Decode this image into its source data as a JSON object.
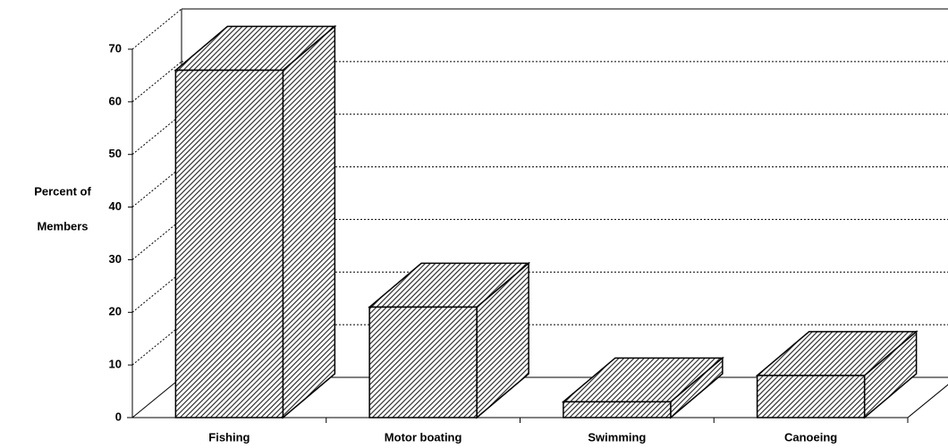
{
  "chart_data": {
    "type": "bar3d",
    "y_label": [
      "Percent of",
      "Members"
    ],
    "categories": [
      "Fishing",
      "Motor boating",
      "Swimming",
      "Canoeing"
    ],
    "values": [
      66,
      21,
      3,
      8
    ],
    "color": "#000000",
    "ylim": [
      0,
      70
    ],
    "yticks": [
      0,
      10,
      20,
      30,
      40,
      50,
      60,
      70
    ],
    "grid": true
  }
}
